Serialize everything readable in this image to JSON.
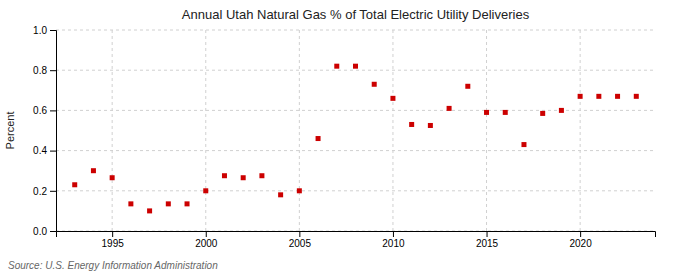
{
  "chart_data": {
    "type": "scatter",
    "title": "Annual Utah Natural Gas % of Total Electric Utility Deliveries",
    "ylabel": "Percent",
    "source": "Source: U.S. Energy Information Administration",
    "x": [
      1993,
      1994,
      1995,
      1996,
      1997,
      1998,
      1999,
      2000,
      2001,
      2002,
      2003,
      2004,
      2005,
      2006,
      2007,
      2008,
      2009,
      2010,
      2011,
      2012,
      2013,
      2014,
      2015,
      2016,
      2017,
      2018,
      2019,
      2020,
      2021,
      2022,
      2023
    ],
    "values": [
      0.23,
      0.3,
      0.265,
      0.135,
      0.1,
      0.135,
      0.135,
      0.2,
      0.275,
      0.265,
      0.275,
      0.18,
      0.2,
      0.46,
      0.82,
      0.82,
      0.73,
      0.66,
      0.53,
      0.525,
      0.61,
      0.72,
      0.59,
      0.59,
      0.43,
      0.585,
      0.6,
      0.67,
      0.67,
      0.67,
      0.67
    ],
    "color": "#cc0000",
    "marker": "square",
    "xlim": [
      1992,
      2024
    ],
    "xticks": [
      1995,
      2000,
      2005,
      2010,
      2015,
      2020
    ],
    "ylim": [
      0.0,
      1.0
    ],
    "yticks": [
      {
        "value": 0,
        "label": "0.0"
      },
      0.2,
      0.4,
      0.6,
      0.8,
      {
        "value": 1,
        "label": "1.0"
      }
    ],
    "grid": true
  }
}
